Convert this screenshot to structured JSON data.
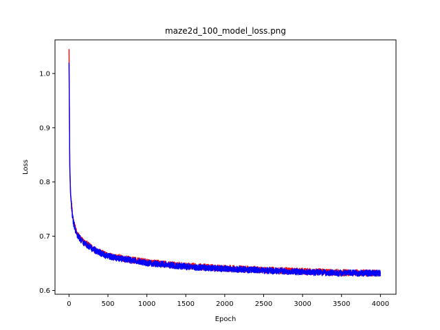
{
  "chart_data": {
    "type": "line",
    "title": "maze2d_100_model_loss.png",
    "xlabel": "Epoch",
    "ylabel": "Loss",
    "xlim": [
      -180,
      4200
    ],
    "ylim": [
      0.593,
      1.062
    ],
    "xticks": [
      0,
      500,
      1000,
      1500,
      2000,
      2500,
      3000,
      3500,
      4000
    ],
    "yticks": [
      0.6,
      0.7,
      0.8,
      0.9,
      1.0
    ],
    "ytick_labels": [
      "0.6",
      "0.7",
      "0.8",
      "0.9",
      "1.0"
    ],
    "grid": false,
    "legend": "none",
    "series": [
      {
        "color": "#ff0000",
        "x": [
          0,
          10,
          20,
          40,
          60,
          100,
          150,
          200,
          300,
          400,
          500,
          700,
          1000,
          1500,
          2000,
          2500,
          3000,
          3500,
          4000
        ],
        "y": [
          1.045,
          0.83,
          0.78,
          0.745,
          0.725,
          0.705,
          0.695,
          0.688,
          0.678,
          0.67,
          0.664,
          0.659,
          0.652,
          0.645,
          0.641,
          0.638,
          0.635,
          0.633,
          0.632
        ]
      },
      {
        "color": "#0000ff",
        "x": [
          0,
          10,
          20,
          40,
          60,
          100,
          150,
          200,
          300,
          400,
          500,
          700,
          1000,
          1500,
          2000,
          2500,
          3000,
          3500,
          4000
        ],
        "y": [
          1.02,
          0.826,
          0.776,
          0.742,
          0.723,
          0.703,
          0.694,
          0.687,
          0.677,
          0.669,
          0.663,
          0.658,
          0.651,
          0.644,
          0.64,
          0.637,
          0.634,
          0.632,
          0.632
        ]
      }
    ]
  }
}
